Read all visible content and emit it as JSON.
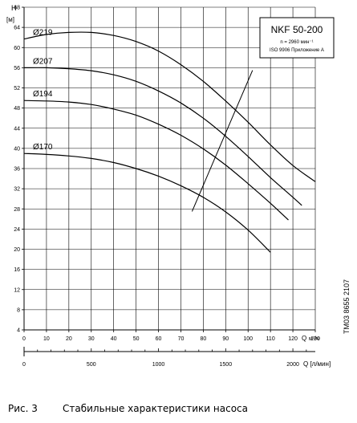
{
  "chart_data": {
    "type": "line",
    "title": "NKF 50-200",
    "subtitle_lines": [
      "n = 2960 мин⁻¹",
      "ISO 9906 Приложение A"
    ],
    "ylabel": "H",
    "yunit": "[м]",
    "xlabel": "Q",
    "xunit": "м³/ч",
    "x2label": "Q [л/мин]",
    "code": "TM03 8655 2107",
    "xlim": [
      0,
      130
    ],
    "ylim": [
      4,
      68
    ],
    "xticks": [
      0,
      10,
      20,
      30,
      40,
      50,
      60,
      70,
      80,
      90,
      100,
      110,
      120,
      130
    ],
    "yticks": [
      4,
      8,
      12,
      16,
      20,
      24,
      28,
      32,
      36,
      40,
      44,
      48,
      52,
      56,
      60,
      64,
      68
    ],
    "x2ticks": [
      0,
      500,
      1000,
      1500,
      2000
    ],
    "grid": true,
    "series": [
      {
        "name": "Ø219",
        "x": [
          0,
          10,
          20,
          30,
          40,
          50,
          60,
          70,
          80,
          90,
          100,
          110,
          120,
          130
        ],
        "y": [
          61.7,
          62.6,
          63.0,
          63.0,
          62.4,
          61.2,
          59.3,
          56.6,
          53.3,
          49.4,
          45.2,
          40.7,
          36.6,
          33.4
        ]
      },
      {
        "name": "Ø207",
        "x": [
          0,
          10,
          20,
          30,
          40,
          50,
          60,
          70,
          80,
          90,
          100,
          110,
          120,
          124
        ],
        "y": [
          56.0,
          56.0,
          55.8,
          55.4,
          54.6,
          53.3,
          51.4,
          49.0,
          46.0,
          42.4,
          38.4,
          34.2,
          30.3,
          28.7
        ]
      },
      {
        "name": "Ø194",
        "x": [
          0,
          10,
          20,
          30,
          40,
          50,
          60,
          70,
          80,
          90,
          100,
          110,
          118
        ],
        "y": [
          49.5,
          49.4,
          49.2,
          48.7,
          47.8,
          46.6,
          44.8,
          42.6,
          39.9,
          36.7,
          33.0,
          29.1,
          25.8
        ]
      },
      {
        "name": "Ø170",
        "x": [
          0,
          10,
          20,
          30,
          40,
          50,
          60,
          70,
          80,
          90,
          100,
          110
        ],
        "y": [
          39.0,
          38.8,
          38.5,
          38.0,
          37.2,
          36.0,
          34.5,
          32.6,
          30.3,
          27.4,
          23.8,
          19.4
        ]
      }
    ],
    "operating_line": {
      "x": [
        75,
        102
      ],
      "y": [
        27.5,
        55.5
      ]
    }
  },
  "caption": {
    "figure": "Рис. 3",
    "text": "Стабильные характеристики насоса"
  }
}
